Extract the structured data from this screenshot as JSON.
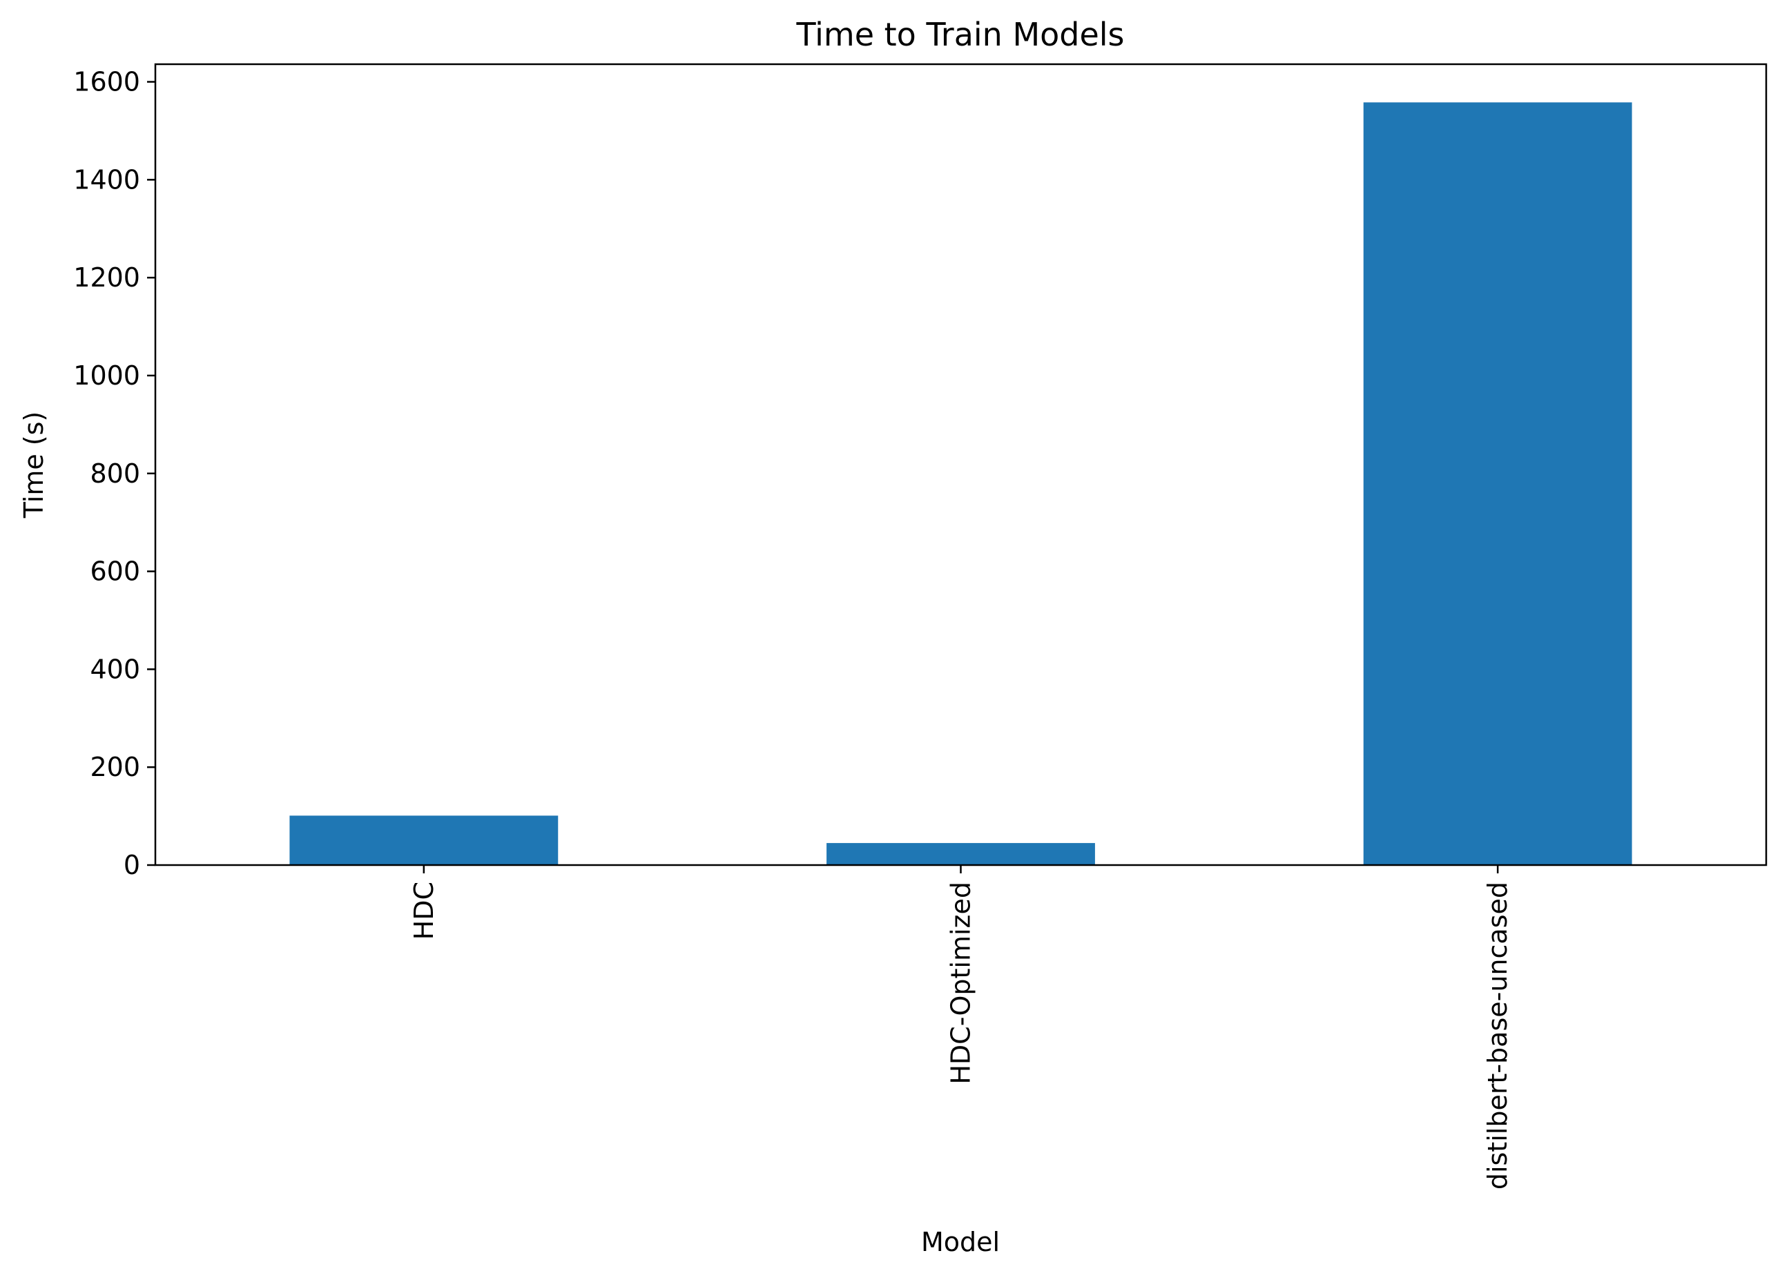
{
  "chart_data": {
    "type": "bar",
    "title": "Time to Train Models",
    "xlabel": "Model",
    "ylabel": "Time (s)",
    "categories": [
      "HDC",
      "HDC-Optimized",
      "distilbert-base-uncased"
    ],
    "values": [
      101,
      45,
      1558
    ],
    "ylim": [
      0,
      1636
    ],
    "yticks": [
      0,
      200,
      400,
      600,
      800,
      1000,
      1200,
      1400,
      1600
    ],
    "ytick_labels": [
      "0",
      "200",
      "400",
      "600",
      "800",
      "1000",
      "1200",
      "1400",
      "1600"
    ],
    "bar_color": "#1f77b4",
    "grid": false,
    "legend": "none"
  }
}
